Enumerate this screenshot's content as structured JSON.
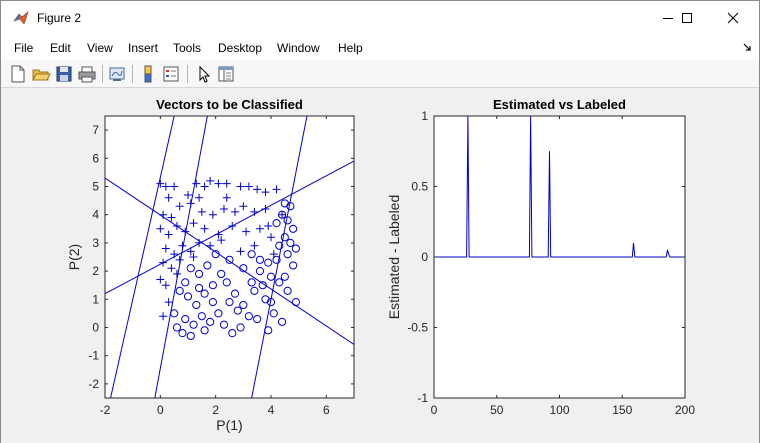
{
  "window": {
    "title": "Figure 2",
    "controls": [
      "minimize-icon",
      "maximize-icon",
      "close-icon"
    ]
  },
  "menu": {
    "items": [
      "File",
      "Edit",
      "View",
      "Insert",
      "Tools",
      "Desktop",
      "Window",
      "Help"
    ],
    "overflow_icon": "dock-arrow-icon"
  },
  "toolbar": {
    "icons": [
      "new-figure-icon",
      "open-file-icon",
      "save-icon",
      "print-icon",
      "link-plot-icon",
      "insert-colorbar-icon",
      "insert-legend-icon",
      "edit-plot-icon",
      "property-inspector-icon"
    ]
  },
  "colors": {
    "series": "#0000cc",
    "figure_bg": "#f0f0f0",
    "axes_bg": "#ffffff"
  },
  "chart_data": [
    {
      "type": "scatter",
      "title": "Vectors to be Classified",
      "xlabel": "P(1)",
      "ylabel": "P(2)",
      "xlim": [
        -2,
        7
      ],
      "ylim": [
        -2.5,
        7.5
      ],
      "xticks": [
        -2,
        0,
        2,
        4,
        6
      ],
      "yticks": [
        -2,
        -1,
        0,
        1,
        2,
        3,
        4,
        5,
        6,
        7
      ],
      "grid": false,
      "series": [
        {
          "marker": "plus",
          "points": [
            [
              0.0,
              5.1
            ],
            [
              0.2,
              5.0
            ],
            [
              0.5,
              5.0
            ],
            [
              0.3,
              4.6
            ],
            [
              1.0,
              4.7
            ],
            [
              1.4,
              4.6
            ],
            [
              1.6,
              5.0
            ],
            [
              1.8,
              5.2
            ],
            [
              2.1,
              5.1
            ],
            [
              2.4,
              5.1
            ],
            [
              2.9,
              5.0
            ],
            [
              3.2,
              5.0
            ],
            [
              3.5,
              4.9
            ],
            [
              3.8,
              4.8
            ],
            [
              4.2,
              4.9
            ],
            [
              0.1,
              4.0
            ],
            [
              0.4,
              3.9
            ],
            [
              0.7,
              4.3
            ],
            [
              1.1,
              4.4
            ],
            [
              1.5,
              4.1
            ],
            [
              1.9,
              4.0
            ],
            [
              2.3,
              4.2
            ],
            [
              2.7,
              4.1
            ],
            [
              3.0,
              4.3
            ],
            [
              3.4,
              4.1
            ],
            [
              3.8,
              4.2
            ],
            [
              4.4,
              4.0
            ],
            [
              0.0,
              3.5
            ],
            [
              0.3,
              3.3
            ],
            [
              0.6,
              3.6
            ],
            [
              0.9,
              3.4
            ],
            [
              1.2,
              3.7
            ],
            [
              1.6,
              3.5
            ],
            [
              2.1,
              3.3
            ],
            [
              2.6,
              3.6
            ],
            [
              3.1,
              3.4
            ],
            [
              3.6,
              3.5
            ],
            [
              4.0,
              3.2
            ],
            [
              0.2,
              2.8
            ],
            [
              0.5,
              2.6
            ],
            [
              0.8,
              2.9
            ],
            [
              1.1,
              2.7
            ],
            [
              1.4,
              3.0
            ],
            [
              1.8,
              2.9
            ],
            [
              2.2,
              3.1
            ],
            [
              0.1,
              2.3
            ],
            [
              0.4,
              2.1
            ],
            [
              0.7,
              2.4
            ],
            [
              0.0,
              1.7
            ],
            [
              0.2,
              1.5
            ],
            [
              0.6,
              1.9
            ],
            [
              0.3,
              0.9
            ],
            [
              0.1,
              0.4
            ],
            [
              1.2,
              2.5
            ],
            [
              2.9,
              2.7
            ],
            [
              3.4,
              2.9
            ],
            [
              4.1,
              2.6
            ],
            [
              2.4,
              4.6
            ],
            [
              1.3,
              5.1
            ],
            [
              3.9,
              3.6
            ]
          ]
        },
        {
          "marker": "circle",
          "points": [
            [
              4.5,
              4.4
            ],
            [
              4.7,
              4.3
            ],
            [
              4.4,
              4.0
            ],
            [
              4.6,
              3.8
            ],
            [
              4.2,
              3.7
            ],
            [
              4.8,
              3.5
            ],
            [
              4.5,
              3.2
            ],
            [
              4.7,
              3.0
            ],
            [
              4.9,
              2.8
            ],
            [
              4.3,
              2.9
            ],
            [
              4.6,
              2.6
            ],
            [
              4.2,
              2.4
            ],
            [
              4.8,
              2.2
            ],
            [
              3.9,
              2.3
            ],
            [
              3.6,
              2.0
            ],
            [
              4.0,
              1.8
            ],
            [
              3.7,
              1.5
            ],
            [
              3.4,
              1.3
            ],
            [
              3.8,
              1.0
            ],
            [
              4.3,
              1.6
            ],
            [
              4.6,
              1.3
            ],
            [
              4.9,
              0.9
            ],
            [
              4.1,
              0.5
            ],
            [
              4.4,
              0.2
            ],
            [
              3.9,
              -0.1
            ],
            [
              3.2,
              0.4
            ],
            [
              2.9,
              0.0
            ],
            [
              2.6,
              -0.2
            ],
            [
              3.0,
              0.8
            ],
            [
              2.7,
              1.2
            ],
            [
              3.3,
              1.6
            ],
            [
              3.0,
              2.1
            ],
            [
              2.5,
              2.4
            ],
            [
              2.2,
              1.9
            ],
            [
              2.0,
              2.6
            ],
            [
              1.7,
              2.2
            ],
            [
              1.4,
              1.9
            ],
            [
              1.1,
              2.1
            ],
            [
              0.9,
              1.6
            ],
            [
              0.7,
              1.3
            ],
            [
              1.0,
              1.1
            ],
            [
              1.3,
              0.8
            ],
            [
              1.6,
              1.2
            ],
            [
              1.9,
              0.9
            ],
            [
              2.1,
              0.5
            ],
            [
              1.8,
              0.2
            ],
            [
              1.5,
              0.4
            ],
            [
              1.2,
              0.1
            ],
            [
              0.9,
              0.3
            ],
            [
              0.6,
              0.0
            ],
            [
              0.8,
              -0.2
            ],
            [
              1.1,
              -0.3
            ],
            [
              1.6,
              -0.1
            ],
            [
              2.3,
              0.1
            ],
            [
              2.8,
              0.6
            ],
            [
              3.5,
              0.3
            ],
            [
              2.4,
              1.6
            ],
            [
              3.3,
              2.6
            ],
            [
              4.0,
              0.9
            ],
            [
              1.9,
              1.5
            ],
            [
              2.5,
              0.9
            ],
            [
              3.6,
              2.4
            ],
            [
              4.5,
              1.8
            ],
            [
              0.5,
              0.5
            ],
            [
              1.4,
              1.4
            ]
          ]
        }
      ],
      "decision_lines": [
        [
          [
            -2.0,
            5.3
          ],
          [
            7.0,
            -0.6
          ]
        ],
        [
          [
            -2.0,
            1.2
          ],
          [
            7.0,
            5.9
          ]
        ],
        [
          [
            -1.8,
            -2.5
          ],
          [
            0.5,
            7.5
          ]
        ],
        [
          [
            -0.2,
            -2.5
          ],
          [
            1.7,
            7.5
          ]
        ],
        [
          [
            3.3,
            -2.5
          ],
          [
            5.3,
            7.5
          ]
        ]
      ]
    },
    {
      "type": "line",
      "title": "Estimated vs Labeled",
      "xlabel": "",
      "ylabel": "Estimated - Labeled",
      "xlim": [
        0,
        200
      ],
      "ylim": [
        -1,
        1
      ],
      "xticks": [
        0,
        50,
        100,
        150,
        200
      ],
      "yticks": [
        -1,
        -0.5,
        0,
        0.5,
        1
      ],
      "yticklabels": [
        "-1",
        "-0.5",
        "0",
        "0.5",
        "1"
      ],
      "grid": false,
      "x": [
        0,
        26,
        27,
        28,
        76,
        77,
        78,
        91,
        92,
        93,
        158,
        159,
        160,
        185,
        186,
        187,
        188,
        200
      ],
      "values": [
        0,
        0,
        1,
        0,
        0,
        1,
        0,
        0,
        0.75,
        0,
        0,
        0.1,
        0,
        0,
        0.05,
        0.02,
        0,
        0
      ]
    }
  ]
}
